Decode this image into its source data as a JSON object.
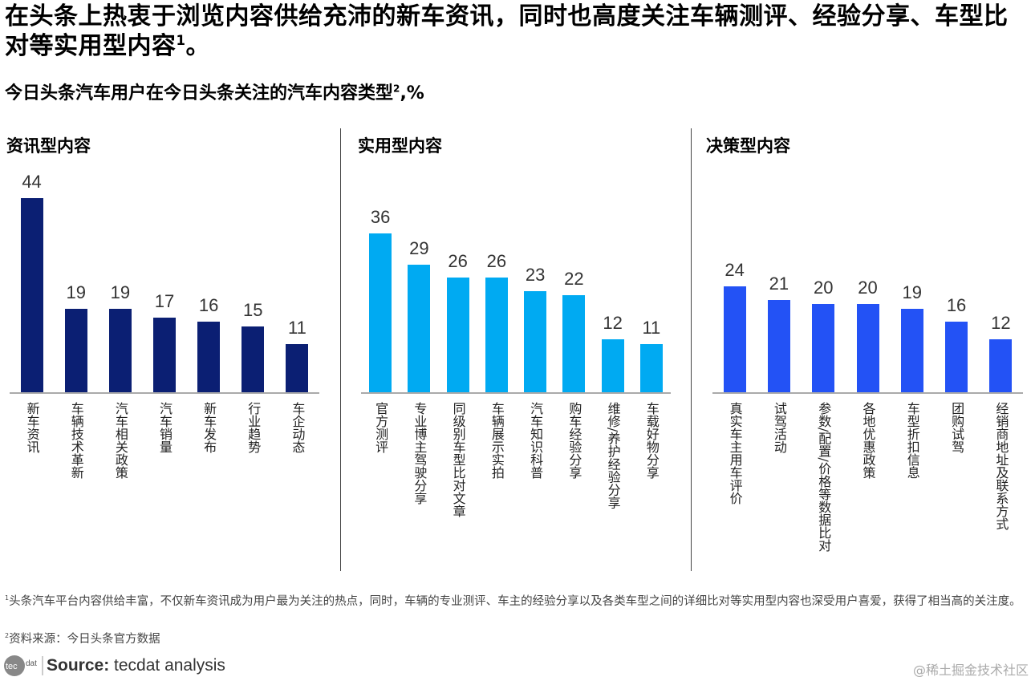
{
  "title": "在头条上热衷于浏览内容供给充沛的新车资讯，同时也高度关注车辆测评、经验分享、车型比对等实用型内容",
  "title_sup": "1",
  "title_end": "。",
  "subtitle": "今日头条汽车用户在今日头条关注的汽车内容类型",
  "subtitle_sup": "2",
  "subtitle_unit": ",%",
  "chart_data": [
    {
      "type": "bar",
      "title": "资讯型内容",
      "color": "#0b1f73",
      "categories": [
        "新车资讯",
        "车辆技术革新",
        "汽车相关政策",
        "汽车销量",
        "新车发布",
        "行业趋势",
        "车企动态"
      ],
      "values": [
        44,
        19,
        19,
        17,
        16,
        15,
        11
      ]
    },
    {
      "type": "bar",
      "title": "实用型内容",
      "color": "#00aaf2",
      "categories": [
        "官方测评",
        "专业博主驾驶分享",
        "同级别车型比对文章",
        "车辆展示实拍",
        "汽车知识科普",
        "购车经验分享",
        "维修/养护经验分享",
        "车载好物分享"
      ],
      "values": [
        36,
        29,
        26,
        26,
        23,
        22,
        12,
        11
      ]
    },
    {
      "type": "bar",
      "title": "决策型内容",
      "color": "#2352f5",
      "categories": [
        "真实车主用车评价",
        "试驾活动",
        "参数/配置/价格等数据比对",
        "各地优惠政策",
        "车型折扣信息",
        "团购试驾",
        "经销商地址及联系方式"
      ],
      "values": [
        24,
        21,
        20,
        20,
        19,
        16,
        12
      ]
    }
  ],
  "footnotes": {
    "note1_sup": "1",
    "note1": "头条汽车平台内容供给丰富，不仅新车资讯成为用户最为关注的热点，同时，车辆的专业测评、车主的经验分享以及各类车型之间的详细比对等实用型内容也深受用户喜爱，获得了相当高的关注度。",
    "note2_sup": "2",
    "note2": "资料来源：今日头条官方数据"
  },
  "source_label": "Source:",
  "source_text": " tecdat analysis",
  "logo_text": "tecdat",
  "watermark": "@稀土掘金技术社区"
}
